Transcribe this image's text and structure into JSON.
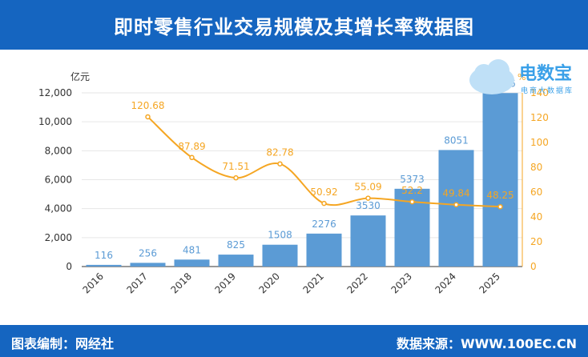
{
  "title": "即时零售行业交易规模及其增长率数据图",
  "footer": {
    "left": "图表编制：网经社",
    "right": "数据来源：WWW.100EC.CN"
  },
  "logo": {
    "name": "电数宝",
    "sub": "电商大数据库"
  },
  "colors": {
    "header": "#1565c0",
    "bar": "#5b9bd5",
    "line": "#f5a623",
    "bar_label": "#5b9bd5"
  },
  "chart_data": {
    "type": "bar",
    "categories": [
      "2016",
      "2017",
      "2018",
      "2019",
      "2020",
      "2021",
      "2022",
      "2023",
      "2024",
      "2025"
    ],
    "series": [
      {
        "type": "bar",
        "axis": "left",
        "values": [
          116,
          256,
          481,
          825,
          1508,
          2276,
          3530,
          5373,
          8051,
          11986
        ],
        "labels": [
          "116",
          "256",
          "481",
          "825",
          "1508",
          "2276",
          "3530",
          "5373",
          "8051",
          "11986"
        ]
      },
      {
        "type": "line",
        "axis": "right",
        "smooth": true,
        "values": [
          null,
          120.68,
          87.89,
          71.51,
          82.78,
          50.92,
          55.09,
          52.2,
          49.84,
          48.25
        ],
        "labels": [
          "",
          "120.68",
          "87.89",
          "71.51",
          "82.78",
          "50.92",
          "55.09",
          "52.2",
          "49.84",
          "48.25"
        ]
      }
    ],
    "ylabel_left": "亿元",
    "ylabel_right": "%",
    "ylim_left": [
      0,
      12000
    ],
    "yticks_left": [
      "0",
      "2,000",
      "4,000",
      "6,000",
      "8,000",
      "10,000",
      "12,000"
    ],
    "ylim_right": [
      0,
      140
    ],
    "yticks_right": [
      "0",
      "20",
      "40",
      "60",
      "80",
      "100",
      "120",
      "140"
    ],
    "grid": true
  }
}
